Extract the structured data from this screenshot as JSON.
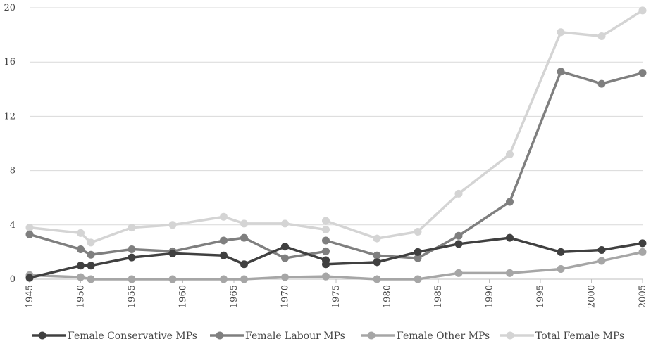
{
  "chart_data": {
    "type": "line",
    "title": "",
    "xlabel": "",
    "ylabel": "",
    "xlim": [
      1945,
      2005
    ],
    "ylim": [
      0,
      20
    ],
    "x_ticks": [
      1945,
      1950,
      1955,
      1960,
      1965,
      1970,
      1975,
      1980,
      1985,
      1990,
      1995,
      2000,
      2005
    ],
    "y_ticks": [
      0,
      4,
      8,
      12,
      16,
      20
    ],
    "grid": "horizontal",
    "legend_position": "bottom",
    "series": [
      {
        "name": "Female Conservative MPs",
        "color": "#404040",
        "segments": [
          [
            [
              1945,
              0.1
            ],
            [
              1950,
              1.0
            ],
            [
              1951,
              1.0
            ],
            [
              1955,
              1.6
            ],
            [
              1959,
              1.9
            ],
            [
              1964,
              1.75
            ],
            [
              1966,
              1.1
            ],
            [
              1970,
              2.4
            ],
            [
              1974,
              1.4
            ]
          ],
          [
            [
              1974,
              1.1
            ],
            [
              1979,
              1.25
            ],
            [
              1983,
              2.0
            ],
            [
              1987,
              2.6
            ],
            [
              1992,
              3.05
            ],
            [
              1997,
              2.0
            ],
            [
              2001,
              2.15
            ],
            [
              2005,
              2.65
            ]
          ]
        ]
      },
      {
        "name": "Female Labour MPs",
        "color": "#7f7f7f",
        "segments": [
          [
            [
              1945,
              3.3
            ],
            [
              1950,
              2.2
            ],
            [
              1951,
              1.8
            ],
            [
              1955,
              2.2
            ],
            [
              1959,
              2.05
            ],
            [
              1964,
              2.85
            ],
            [
              1966,
              3.05
            ],
            [
              1970,
              1.55
            ],
            [
              1974,
              2.05
            ]
          ],
          [
            [
              1974,
              2.85
            ],
            [
              1979,
              1.75
            ],
            [
              1983,
              1.55
            ],
            [
              1987,
              3.2
            ],
            [
              1992,
              5.7
            ],
            [
              1997,
              15.3
            ],
            [
              2001,
              14.4
            ],
            [
              2005,
              15.2
            ]
          ]
        ]
      },
      {
        "name": "Female Other MPs",
        "color": "#a6a6a6",
        "segments": [
          [
            [
              1945,
              0.3
            ],
            [
              1950,
              0.15
            ],
            [
              1951,
              0.0
            ],
            [
              1955,
              0.0
            ],
            [
              1959,
              0.0
            ],
            [
              1964,
              0.0
            ],
            [
              1966,
              0.0
            ],
            [
              1970,
              0.15
            ],
            [
              1974,
              0.2
            ]
          ],
          [
            [
              1974,
              0.2
            ],
            [
              1979,
              0.0
            ],
            [
              1983,
              0.0
            ],
            [
              1987,
              0.45
            ],
            [
              1992,
              0.45
            ],
            [
              1997,
              0.75
            ],
            [
              2001,
              1.35
            ],
            [
              2005,
              2.0
            ]
          ]
        ]
      },
      {
        "name": "Total Female MPs",
        "color": "#d4d4d4",
        "segments": [
          [
            [
              1945,
              3.8
            ],
            [
              1950,
              3.4
            ],
            [
              1951,
              2.7
            ],
            [
              1955,
              3.8
            ],
            [
              1959,
              4.0
            ],
            [
              1964,
              4.6
            ],
            [
              1966,
              4.1
            ],
            [
              1970,
              4.1
            ],
            [
              1974,
              3.65
            ]
          ],
          [
            [
              1974,
              4.3
            ],
            [
              1979,
              3.0
            ],
            [
              1983,
              3.5
            ],
            [
              1987,
              6.3
            ],
            [
              1992,
              9.2
            ],
            [
              1997,
              18.2
            ],
            [
              2001,
              17.9
            ],
            [
              2005,
              19.8
            ]
          ]
        ]
      }
    ]
  }
}
